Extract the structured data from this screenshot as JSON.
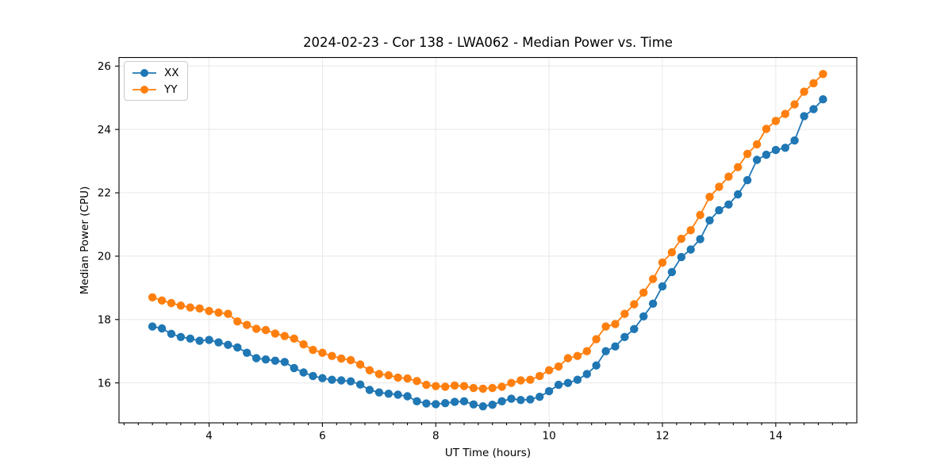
{
  "figure": {
    "background_color": "#ffffff",
    "axes_edge_color": "#000000",
    "grid_color": "#e8e8e8",
    "text_color": "#000000"
  },
  "chart_data": {
    "type": "line",
    "title": "2024-02-23 - Cor 138 - LWA062 - Median Power vs. Time",
    "xlabel": "UT Time (hours)",
    "ylabel": "Median Power (CPU)",
    "xlim": [
      2.41,
      15.43
    ],
    "ylim": [
      14.74,
      26.27
    ],
    "xticks": [
      4,
      6,
      8,
      10,
      12,
      14
    ],
    "yticks": [
      16,
      18,
      20,
      22,
      24,
      26
    ],
    "minor_xtick_step": 0.25,
    "grid": true,
    "legend_position": "upper-left",
    "marker": "circle",
    "x": [
      3.0,
      3.167,
      3.333,
      3.5,
      3.667,
      3.833,
      4.0,
      4.167,
      4.333,
      4.5,
      4.667,
      4.833,
      5.0,
      5.167,
      5.333,
      5.5,
      5.667,
      5.833,
      6.0,
      6.167,
      6.333,
      6.5,
      6.667,
      6.833,
      7.0,
      7.167,
      7.333,
      7.5,
      7.667,
      7.833,
      8.0,
      8.167,
      8.333,
      8.5,
      8.667,
      8.833,
      9.0,
      9.167,
      9.333,
      9.5,
      9.667,
      9.833,
      10.0,
      10.167,
      10.333,
      10.5,
      10.667,
      10.833,
      11.0,
      11.167,
      11.333,
      11.5,
      11.667,
      11.833,
      12.0,
      12.167,
      12.333,
      12.5,
      12.667,
      12.833,
      13.0,
      13.167,
      13.333,
      13.5,
      13.667,
      13.833,
      14.0,
      14.167,
      14.333,
      14.5,
      14.667,
      14.833
    ],
    "series": [
      {
        "name": "XX",
        "color": "#1f77b4",
        "values": [
          17.78,
          17.72,
          17.55,
          17.45,
          17.4,
          17.33,
          17.36,
          17.28,
          17.2,
          17.12,
          16.95,
          16.78,
          16.74,
          16.7,
          16.66,
          16.47,
          16.33,
          16.22,
          16.15,
          16.1,
          16.08,
          16.05,
          15.95,
          15.78,
          15.7,
          15.66,
          15.63,
          15.58,
          15.42,
          15.35,
          15.33,
          15.36,
          15.4,
          15.42,
          15.32,
          15.26,
          15.31,
          15.42,
          15.5,
          15.46,
          15.48,
          15.56,
          15.74,
          15.94,
          16.0,
          16.1,
          16.28,
          16.55,
          17.0,
          17.15,
          17.45,
          17.7,
          18.1,
          18.5,
          19.05,
          19.5,
          19.97,
          20.21,
          20.54,
          21.13,
          21.45,
          21.63,
          21.95,
          22.4,
          23.04,
          23.2,
          23.35,
          23.42,
          23.65,
          24.42,
          24.64,
          24.95
        ]
      },
      {
        "name": "YY",
        "color": "#ff7f0e",
        "values": [
          18.7,
          18.6,
          18.52,
          18.44,
          18.38,
          18.35,
          18.27,
          18.22,
          18.18,
          17.94,
          17.83,
          17.71,
          17.67,
          17.56,
          17.48,
          17.4,
          17.22,
          17.04,
          16.95,
          16.85,
          16.77,
          16.72,
          16.58,
          16.4,
          16.28,
          16.24,
          16.17,
          16.14,
          16.06,
          15.94,
          15.9,
          15.88,
          15.92,
          15.9,
          15.84,
          15.82,
          15.84,
          15.88,
          16.0,
          16.08,
          16.1,
          16.22,
          16.4,
          16.52,
          16.78,
          16.85,
          17.0,
          17.38,
          17.78,
          17.86,
          18.18,
          18.48,
          18.85,
          19.28,
          19.8,
          20.12,
          20.55,
          20.82,
          21.3,
          21.87,
          22.19,
          22.51,
          22.81,
          23.23,
          23.53,
          24.02,
          24.27,
          24.49,
          24.79,
          25.19,
          25.46,
          25.75
        ]
      }
    ]
  }
}
